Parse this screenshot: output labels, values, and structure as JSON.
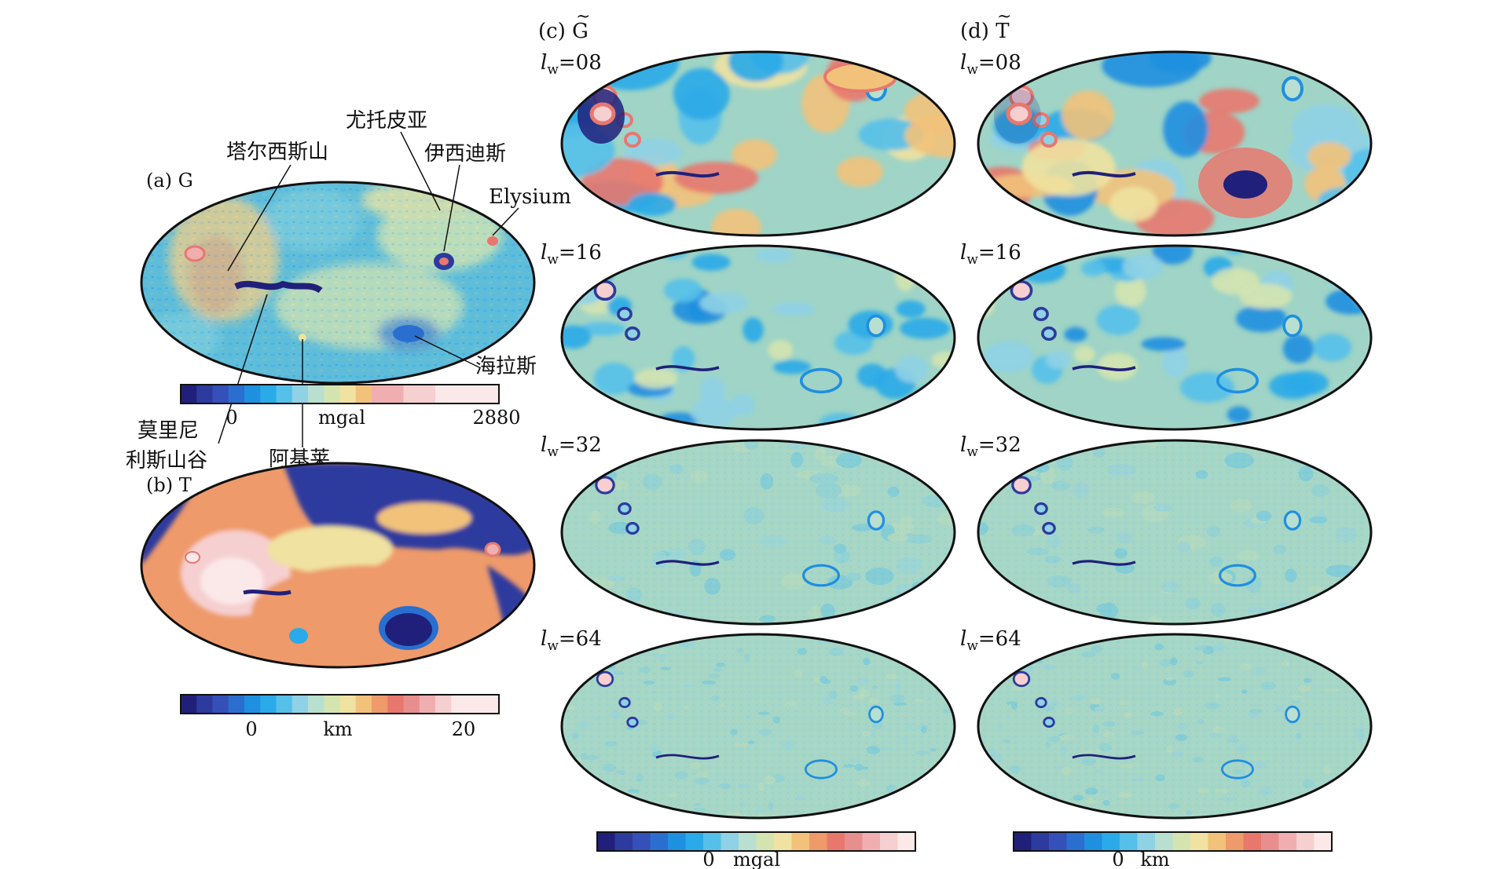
{
  "panels": {
    "a": {
      "label": "(a) G"
    },
    "b": {
      "label": "(b) T"
    },
    "c": {
      "label_prefix": "(c) ",
      "label_symbol": "G",
      "tilde": "~"
    },
    "d": {
      "label_prefix": "(d) ",
      "label_symbol": "T",
      "tilde": "~"
    }
  },
  "annotations": {
    "tharsis": "塔尔西斯山",
    "utopia": "尤托皮亚",
    "isidis": "伊西迪斯",
    "elysium": "Elysium",
    "hellas": "海拉斯",
    "valles_line1": "莫里尼",
    "valles_line2": "利斯山谷",
    "argyre": "阿基莱"
  },
  "bandwidths": [
    {
      "l": "l",
      "sub": "w",
      "val": "=08"
    },
    {
      "l": "l",
      "sub": "w",
      "val": "=16"
    },
    {
      "l": "l",
      "sub": "w",
      "val": "=32"
    },
    {
      "l": "l",
      "sub": "w",
      "val": "=64"
    }
  ],
  "colorbars": {
    "a": {
      "min_label": "0",
      "unit": "mgal",
      "max_label": "2880"
    },
    "b": {
      "min_label": "0",
      "unit": "km",
      "max_label": "20"
    },
    "c": {
      "min_label": "0",
      "unit": "mgal"
    },
    "d": {
      "min_label": "0",
      "unit": "km"
    }
  },
  "palette": [
    "#20207a",
    "#2d3a9e",
    "#3550b8",
    "#2a6fd0",
    "#1f8fe0",
    "#2aaae8",
    "#55c0ea",
    "#8fd2e6",
    "#b8dfd0",
    "#d4e4b0",
    "#f0e2a0",
    "#f2c27a",
    "#ee9a6a",
    "#e8786e",
    "#e88e8e",
    "#f0aeb0",
    "#f6cfd0",
    "#fbe9ea"
  ],
  "colors": {
    "land_bg": "#9fd4c6",
    "outline": "#111111"
  }
}
